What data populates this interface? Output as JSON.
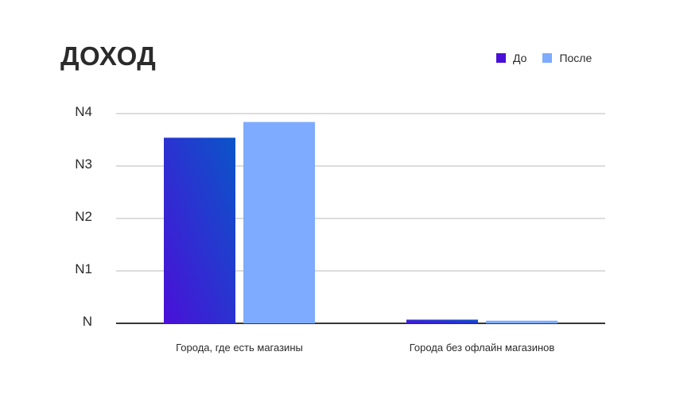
{
  "colors": {
    "before_start": "#4a10d8",
    "before_end": "#0a55c8",
    "after": "#7eabff",
    "grid": "#c8c8c8",
    "axis": "#1a1a1a",
    "text": "#2b2b2b"
  },
  "chart_data": {
    "type": "bar",
    "title": "ДОХОД",
    "categories": [
      "Города, где есть магазины",
      "Города без офлайн магазинов"
    ],
    "series": [
      {
        "name": "До",
        "values": [
          3.54,
          0.07
        ]
      },
      {
        "name": "После",
        "values": [
          3.84,
          0.05
        ]
      }
    ],
    "yticks": [
      "N",
      "N1",
      "N2",
      "N3",
      "N4"
    ],
    "ylim": [
      0,
      4
    ],
    "grid": true,
    "legend": "top-right"
  }
}
